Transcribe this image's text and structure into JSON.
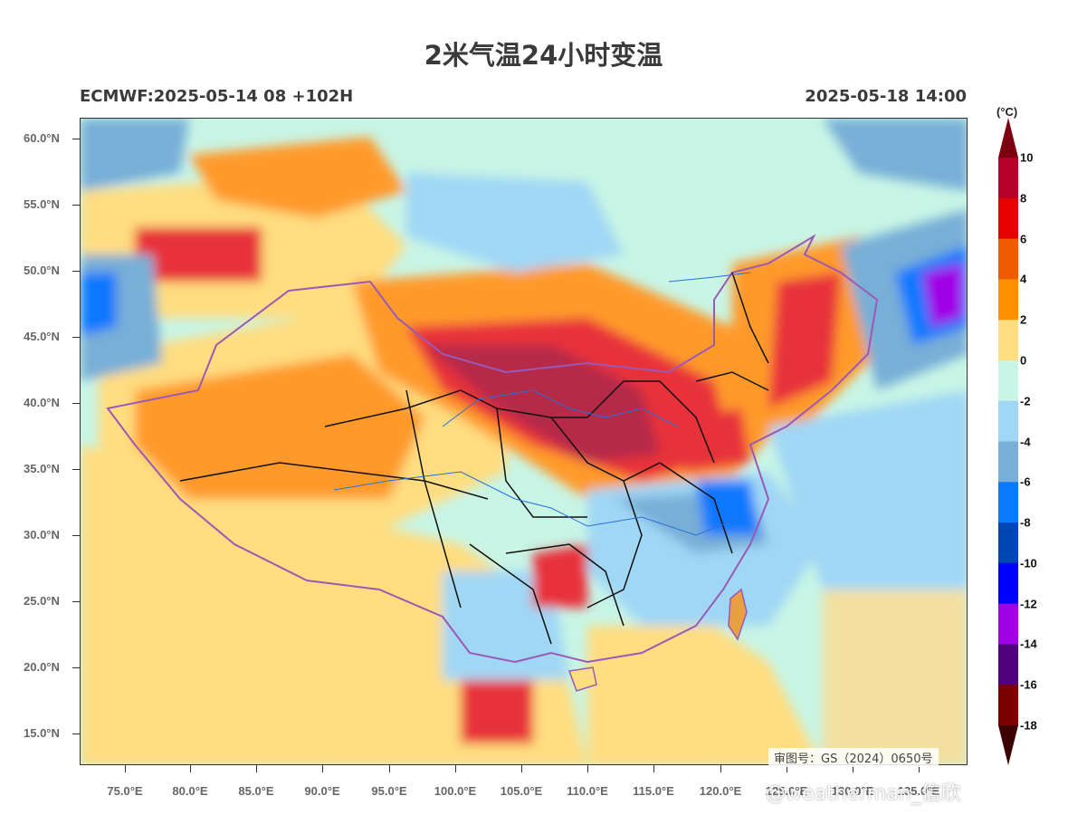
{
  "header": {
    "title": "2米气温24小时变温",
    "model_run": "ECMWF:2025-05-14 08 +102H",
    "valid_time": "2025-05-18 14:00"
  },
  "axes": {
    "lat_labels": [
      "60.0°N",
      "55.0°N",
      "50.0°N",
      "45.0°N",
      "40.0°N",
      "35.0°N",
      "30.0°N",
      "25.0°N",
      "20.0°N",
      "15.0°N"
    ],
    "lon_labels": [
      "75.0°E",
      "80.0°E",
      "85.0°E",
      "90.0°E",
      "95.0°E",
      "100.0°E",
      "105.0°E",
      "110.0°E",
      "115.0°E",
      "120.0°E",
      "125.0°E",
      "130.0°E",
      "135.0°E"
    ]
  },
  "colorbar": {
    "unit": "(°C)",
    "levels": [
      "10",
      "8",
      "6",
      "4",
      "2",
      "0",
      "-2",
      "-4",
      "-6",
      "-8",
      "-10",
      "-12",
      "-14",
      "-16",
      "-18"
    ],
    "colors": [
      "#b5002a",
      "#e60000",
      "#f05a00",
      "#ff9100",
      "#ffdd80",
      "#c8f5e6",
      "#a0d7f5",
      "#78afd7",
      "#0a78ff",
      "#0046b4",
      "#0000ff",
      "#a000e6",
      "#50007d",
      "#7d0000"
    ],
    "top_arrow_color": "#7d0010",
    "bottom_arrow_color": "#3c0000"
  },
  "map": {
    "approval_number": "审图号：GS（2024）0650号",
    "colors": {
      "ocean_cool": "#c8f5e6",
      "warm_light": "#ffdd80",
      "warm_orange": "#ff9a2a",
      "warm_red": "#e8303a",
      "warm_dark": "#b5294a",
      "cool_light": "#a0d7f5",
      "cool_mid": "#78afd7",
      "cool_blue": "#0a78ff",
      "border_purple": "#9b59b6",
      "province_black": "#111111",
      "river_blue": "#2a6fd6"
    }
  },
  "watermark": "@weatherman_信欣"
}
